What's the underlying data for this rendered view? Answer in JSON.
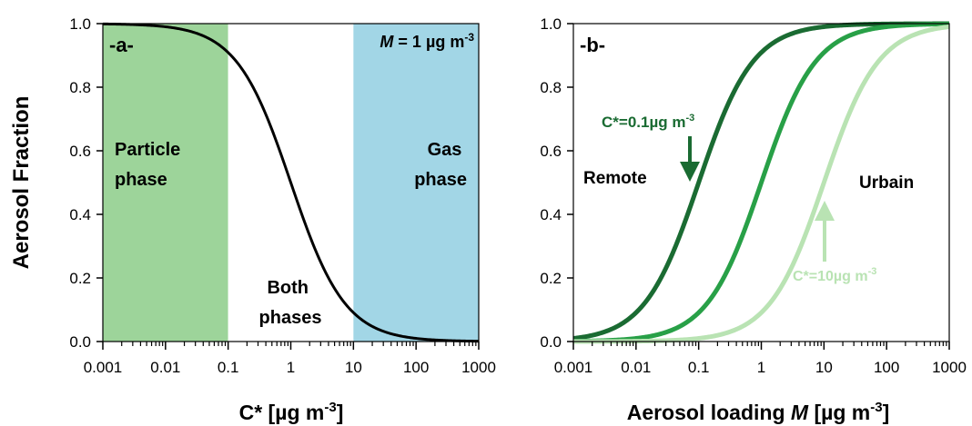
{
  "chart_data": [
    {
      "type": "line",
      "panel_label": "-a-",
      "ylabel": "Aerosol Fraction",
      "xlabel": "C* [µg m",
      "xlabel_sup": "-3",
      "xlabel_end": "]",
      "x_scale": "log",
      "xlim": [
        0.001,
        1000
      ],
      "ylim": [
        0,
        1
      ],
      "x_ticks": [
        "0.001",
        "0.01",
        "0.1",
        "1",
        "10",
        "100",
        "1000"
      ],
      "y_ticks": [
        "0.0",
        "0.2",
        "0.4",
        "0.6",
        "0.8",
        "1.0"
      ],
      "grid": false,
      "annotation_M": {
        "italic": "M",
        "text": " = 1 µg m",
        "sup": "-3"
      },
      "regions": [
        {
          "label_line1": "Particle",
          "label_line2": "phase",
          "x_range": [
            0.001,
            0.1
          ],
          "color": "#9dd49a"
        },
        {
          "label_line1": "Both",
          "label_line2": "phases",
          "x_range": [
            0.1,
            10
          ],
          "color": "#ffffff"
        },
        {
          "label_line1": "Gas",
          "label_line2": "phase",
          "x_range": [
            10,
            1000
          ],
          "color": "#a2d6e6"
        }
      ],
      "series": [
        {
          "M": 1,
          "color": "#000000"
        }
      ]
    },
    {
      "type": "line",
      "panel_label": "-b-",
      "xlabel": "Aerosol loading ",
      "xlabel_italic": "M",
      "xlabel_rest": " [µg m",
      "xlabel_sup": "-3",
      "xlabel_end": "]",
      "x_scale": "log",
      "xlim": [
        0.001,
        1000
      ],
      "ylim": [
        0,
        1
      ],
      "x_ticks": [
        "0.001",
        "0.01",
        "0.1",
        "1",
        "10",
        "100",
        "1000"
      ],
      "y_ticks": [
        "0.0",
        "0.2",
        "0.4",
        "0.6",
        "0.8",
        "1.0"
      ],
      "grid": false,
      "text_labels": {
        "left": "Remote",
        "right": "Urbain"
      },
      "series": [
        {
          "cstar": 0.1,
          "color": "#1a6b32",
          "label": "C*=0.1µg m",
          "label_sup": "-3"
        },
        {
          "cstar": 1,
          "color": "#28a047"
        },
        {
          "cstar": 10,
          "color": "#b9e3b3",
          "label": "C*=10µg m",
          "label_sup": "-3"
        }
      ]
    }
  ]
}
